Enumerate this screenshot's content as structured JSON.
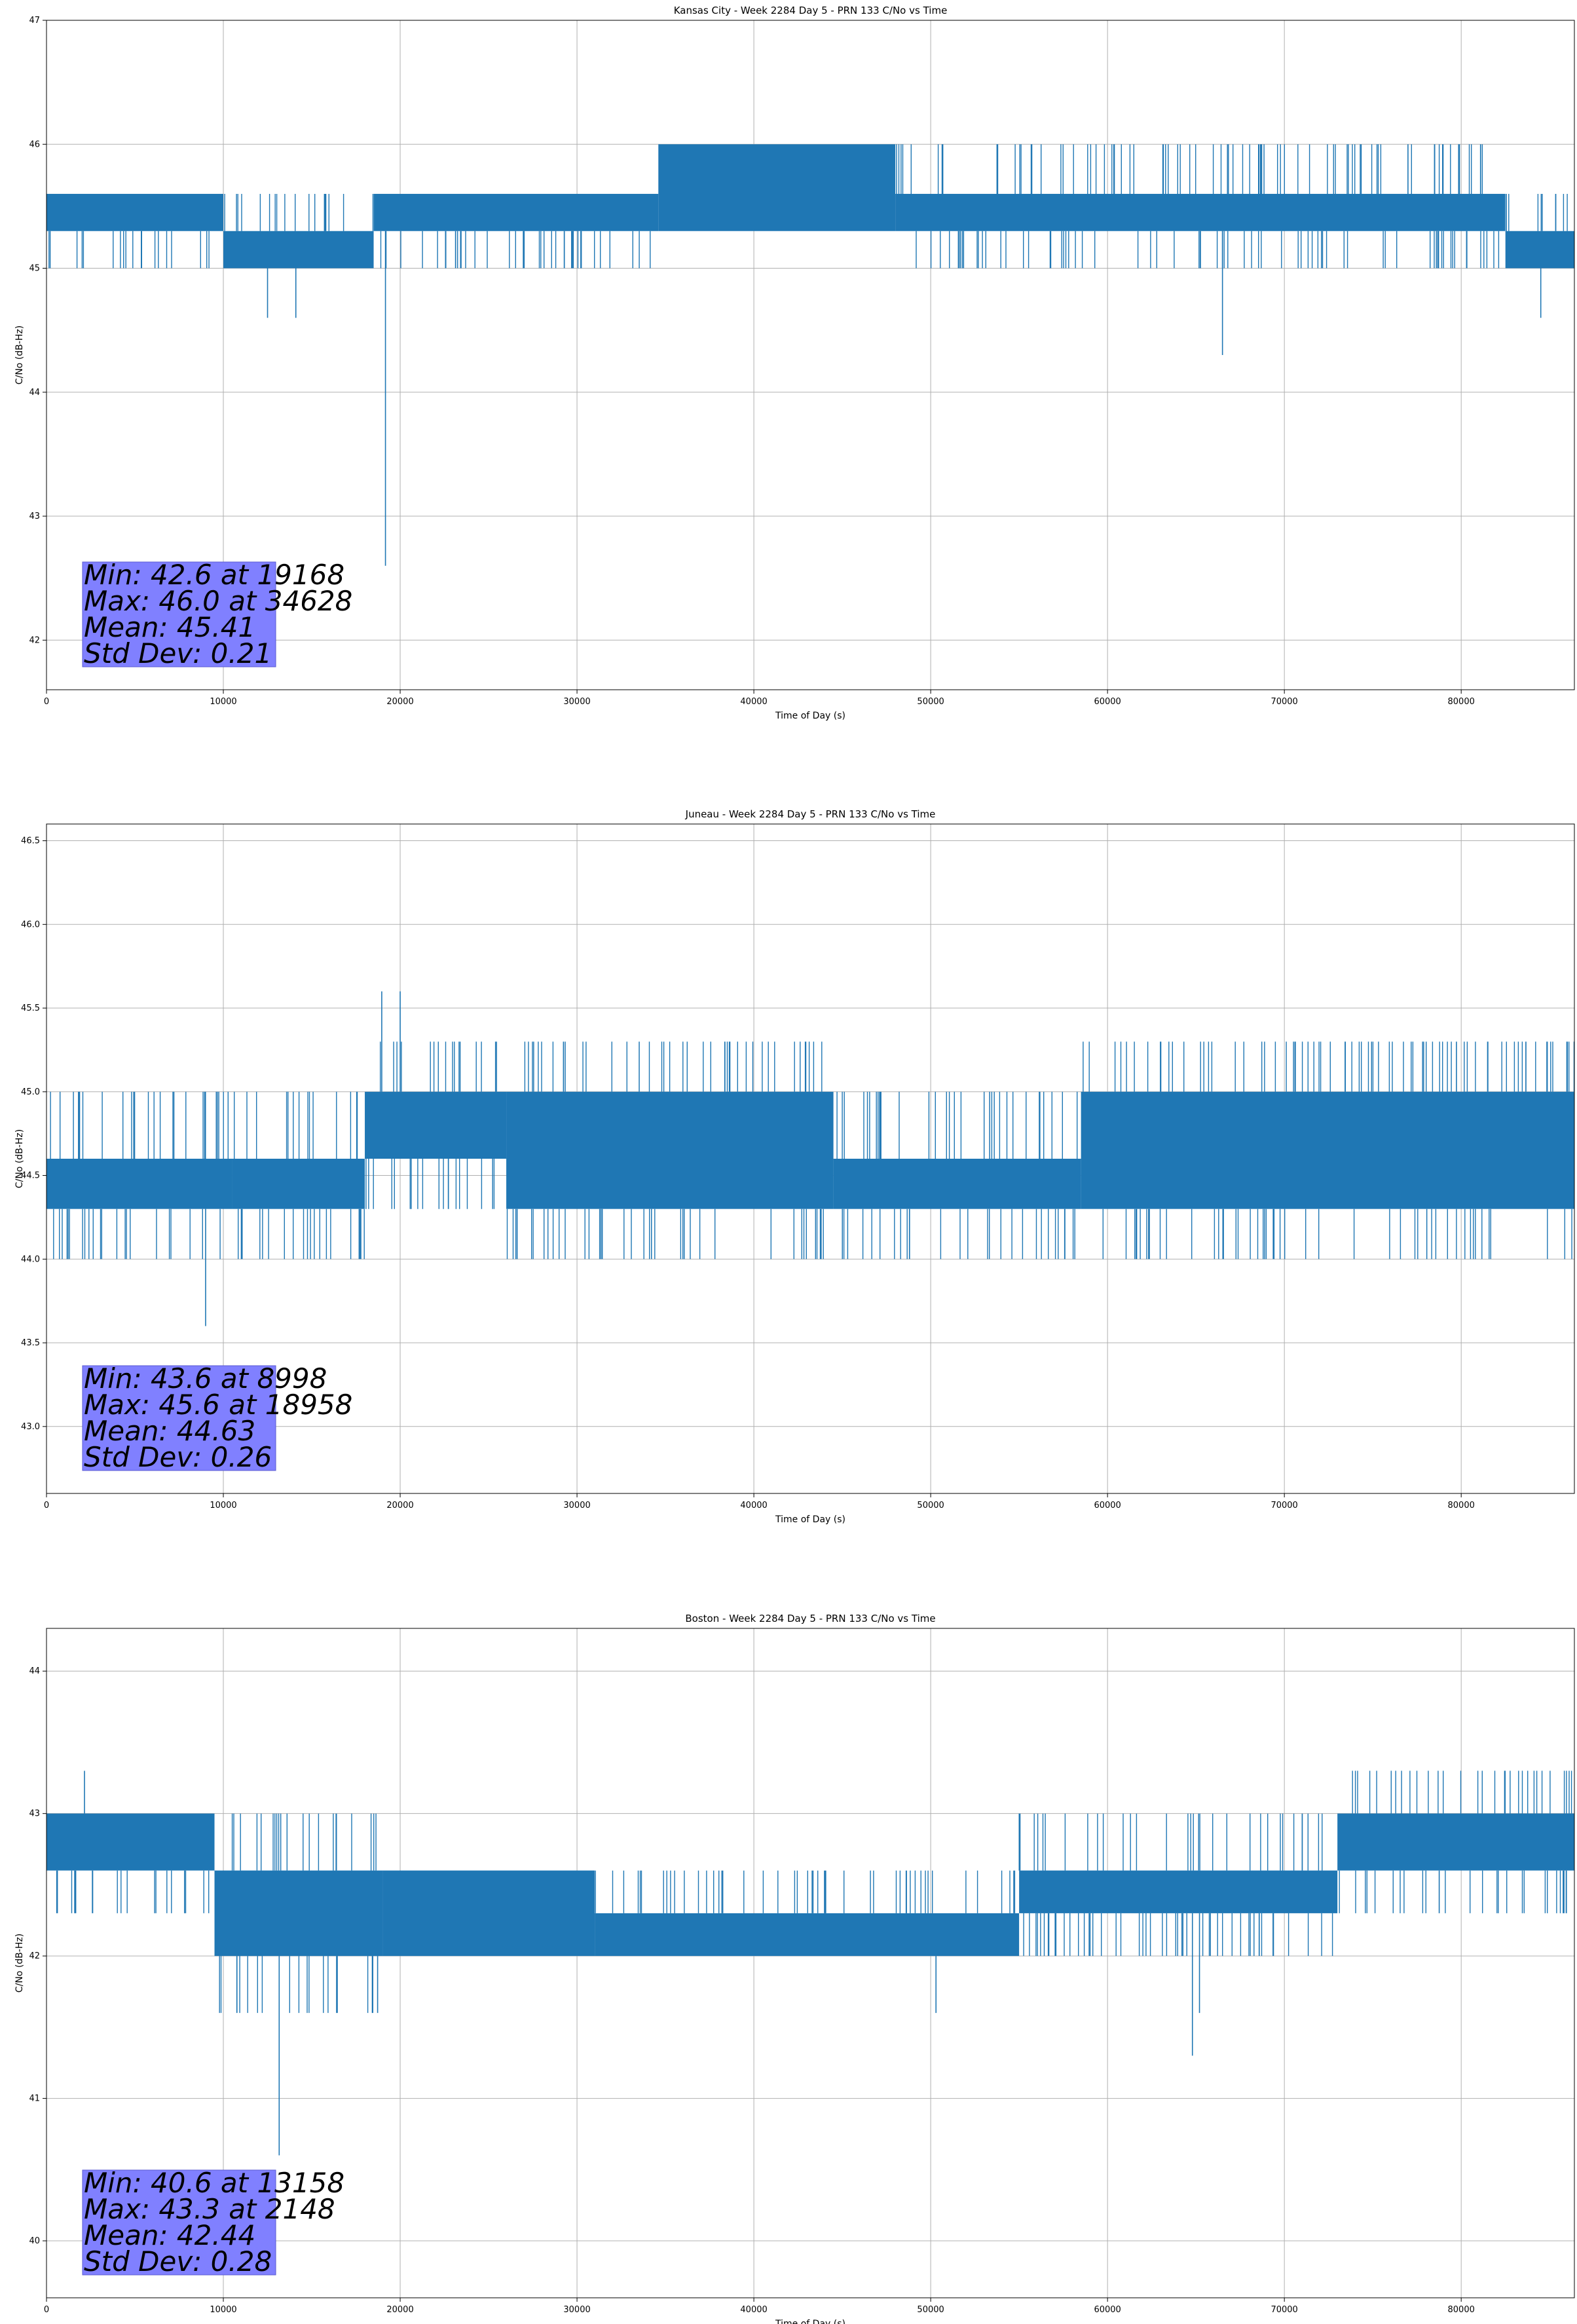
{
  "colors": {
    "series": "#1f77b4",
    "grid": "#b0b0b0",
    "stats_box": "#8080ff"
  },
  "chart_data": [
    {
      "type": "line",
      "title": "Kansas City - Week 2284 Day 5 - PRN 133 C/No vs Time",
      "xlabel": "Time of Day (s)",
      "ylabel": "C/No (dB-Hz)",
      "xlim": [
        0,
        86400
      ],
      "ylim": [
        41.6,
        47.0
      ],
      "xticks": [
        0,
        10000,
        20000,
        30000,
        40000,
        50000,
        60000,
        70000,
        80000
      ],
      "yticks": [
        42,
        43,
        44,
        45,
        46,
        47
      ],
      "grid": true,
      "series": [
        {
          "type": "noise_band",
          "segments": [
            {
              "x": [
                0,
                10000
              ],
              "center": 45.45,
              "band": [
                45.3,
                45.6
              ],
              "whiskers": [
                45.0,
                45.6
              ]
            },
            {
              "x": [
                10000,
                18500
              ],
              "center": 45.15,
              "band": [
                45.0,
                45.3
              ],
              "whiskers": [
                45.0,
                45.6
              ]
            },
            {
              "x": [
                18500,
                34600
              ],
              "center": 45.45,
              "band": [
                45.3,
                45.6
              ],
              "whiskers": [
                45.0,
                45.6
              ]
            },
            {
              "x": [
                34600,
                48000
              ],
              "center": 45.7,
              "band": [
                45.3,
                46.0
              ],
              "whiskers": [
                45.3,
                46.0
              ]
            },
            {
              "x": [
                48000,
                82500
              ],
              "center": 45.45,
              "band": [
                45.3,
                45.6
              ],
              "whiskers": [
                45.0,
                46.0
              ]
            },
            {
              "x": [
                82500,
                86400
              ],
              "center": 45.2,
              "band": [
                45.0,
                45.3
              ],
              "whiskers": [
                45.0,
                45.6
              ]
            }
          ],
          "spikes": [
            {
              "x": 12500,
              "y": 44.6
            },
            {
              "x": 14100,
              "y": 44.6
            },
            {
              "x": 19168,
              "y": 42.6
            },
            {
              "x": 66500,
              "y": 44.3
            },
            {
              "x": 84500,
              "y": 44.6
            }
          ]
        }
      ],
      "annotation": [
        "Min: 42.6 at 19168",
        "Max: 46.0 at 34628",
        "Mean: 45.41",
        "Std Dev: 0.21"
      ]
    },
    {
      "type": "line",
      "title": "Juneau - Week 2284 Day 5 - PRN 133 C/No vs Time",
      "xlabel": "Time of Day (s)",
      "ylabel": "C/No (dB-Hz)",
      "xlim": [
        0,
        86400
      ],
      "ylim": [
        42.6,
        46.6
      ],
      "xticks": [
        0,
        10000,
        20000,
        30000,
        40000,
        50000,
        60000,
        70000,
        80000
      ],
      "yticks": [
        43.0,
        43.5,
        44.0,
        44.5,
        45.0,
        45.5,
        46.0,
        46.5
      ],
      "grid": true,
      "series": [
        {
          "type": "noise_band",
          "segments": [
            {
              "x": [
                0,
                10500
              ],
              "center": 44.45,
              "band": [
                44.3,
                44.6
              ],
              "whiskers": [
                44.0,
                45.0
              ]
            },
            {
              "x": [
                10500,
                18000
              ],
              "center": 44.5,
              "band": [
                44.3,
                44.6
              ],
              "whiskers": [
                44.0,
                45.0
              ]
            },
            {
              "x": [
                18000,
                26000
              ],
              "center": 44.8,
              "band": [
                44.6,
                45.0
              ],
              "whiskers": [
                44.3,
                45.3
              ]
            },
            {
              "x": [
                26000,
                44500
              ],
              "center": 44.75,
              "band": [
                44.3,
                45.0
              ],
              "whiskers": [
                44.0,
                45.3
              ]
            },
            {
              "x": [
                44500,
                58500
              ],
              "center": 44.45,
              "band": [
                44.3,
                44.6
              ],
              "whiskers": [
                44.0,
                45.0
              ]
            },
            {
              "x": [
                58500,
                86400
              ],
              "center": 44.7,
              "band": [
                44.3,
                45.0
              ],
              "whiskers": [
                44.0,
                45.3
              ]
            }
          ],
          "spikes": [
            {
              "x": 8998,
              "y": 43.6
            },
            {
              "x": 18958,
              "y": 45.6
            },
            {
              "x": 20000,
              "y": 45.6
            }
          ]
        }
      ],
      "annotation": [
        "Min: 43.6 at 8998",
        "Max: 45.6 at 18958",
        "Mean: 44.63",
        "Std Dev: 0.26"
      ]
    },
    {
      "type": "line",
      "title": "Boston - Week 2284 Day 5 - PRN 133 C/No vs Time",
      "xlabel": "Time of Day (s)",
      "ylabel": "C/No (dB-Hz)",
      "xlim": [
        0,
        86400
      ],
      "ylim": [
        39.6,
        44.3
      ],
      "xticks": [
        0,
        10000,
        20000,
        30000,
        40000,
        50000,
        60000,
        70000,
        80000
      ],
      "yticks": [
        40,
        41,
        42,
        43,
        44
      ],
      "grid": true,
      "series": [
        {
          "type": "noise_band",
          "segments": [
            {
              "x": [
                0,
                9500
              ],
              "center": 42.75,
              "band": [
                42.6,
                43.0
              ],
              "whiskers": [
                42.3,
                43.0
              ]
            },
            {
              "x": [
                9500,
                19000
              ],
              "center": 42.35,
              "band": [
                42.0,
                42.6
              ],
              "whiskers": [
                41.6,
                43.0
              ]
            },
            {
              "x": [
                19000,
                31000
              ],
              "center": 42.4,
              "band": [
                42.0,
                42.6
              ],
              "whiskers": [
                42.0,
                42.6
              ]
            },
            {
              "x": [
                31000,
                55000
              ],
              "center": 42.2,
              "band": [
                42.0,
                42.3
              ],
              "whiskers": [
                42.0,
                42.6
              ]
            },
            {
              "x": [
                55000,
                73000
              ],
              "center": 42.45,
              "band": [
                42.3,
                42.6
              ],
              "whiskers": [
                42.0,
                43.0
              ]
            },
            {
              "x": [
                73000,
                86400
              ],
              "center": 42.75,
              "band": [
                42.6,
                43.0
              ],
              "whiskers": [
                42.3,
                43.3
              ]
            }
          ],
          "spikes": [
            {
              "x": 2148,
              "y": 43.3
            },
            {
              "x": 13158,
              "y": 40.6
            },
            {
              "x": 64800,
              "y": 41.3
            },
            {
              "x": 65200,
              "y": 41.6
            },
            {
              "x": 50300,
              "y": 41.6
            }
          ]
        }
      ],
      "annotation": [
        "Min: 40.6 at 13158",
        "Max: 43.3 at 2148",
        "Mean: 42.44",
        "Std Dev: 0.28"
      ]
    }
  ]
}
